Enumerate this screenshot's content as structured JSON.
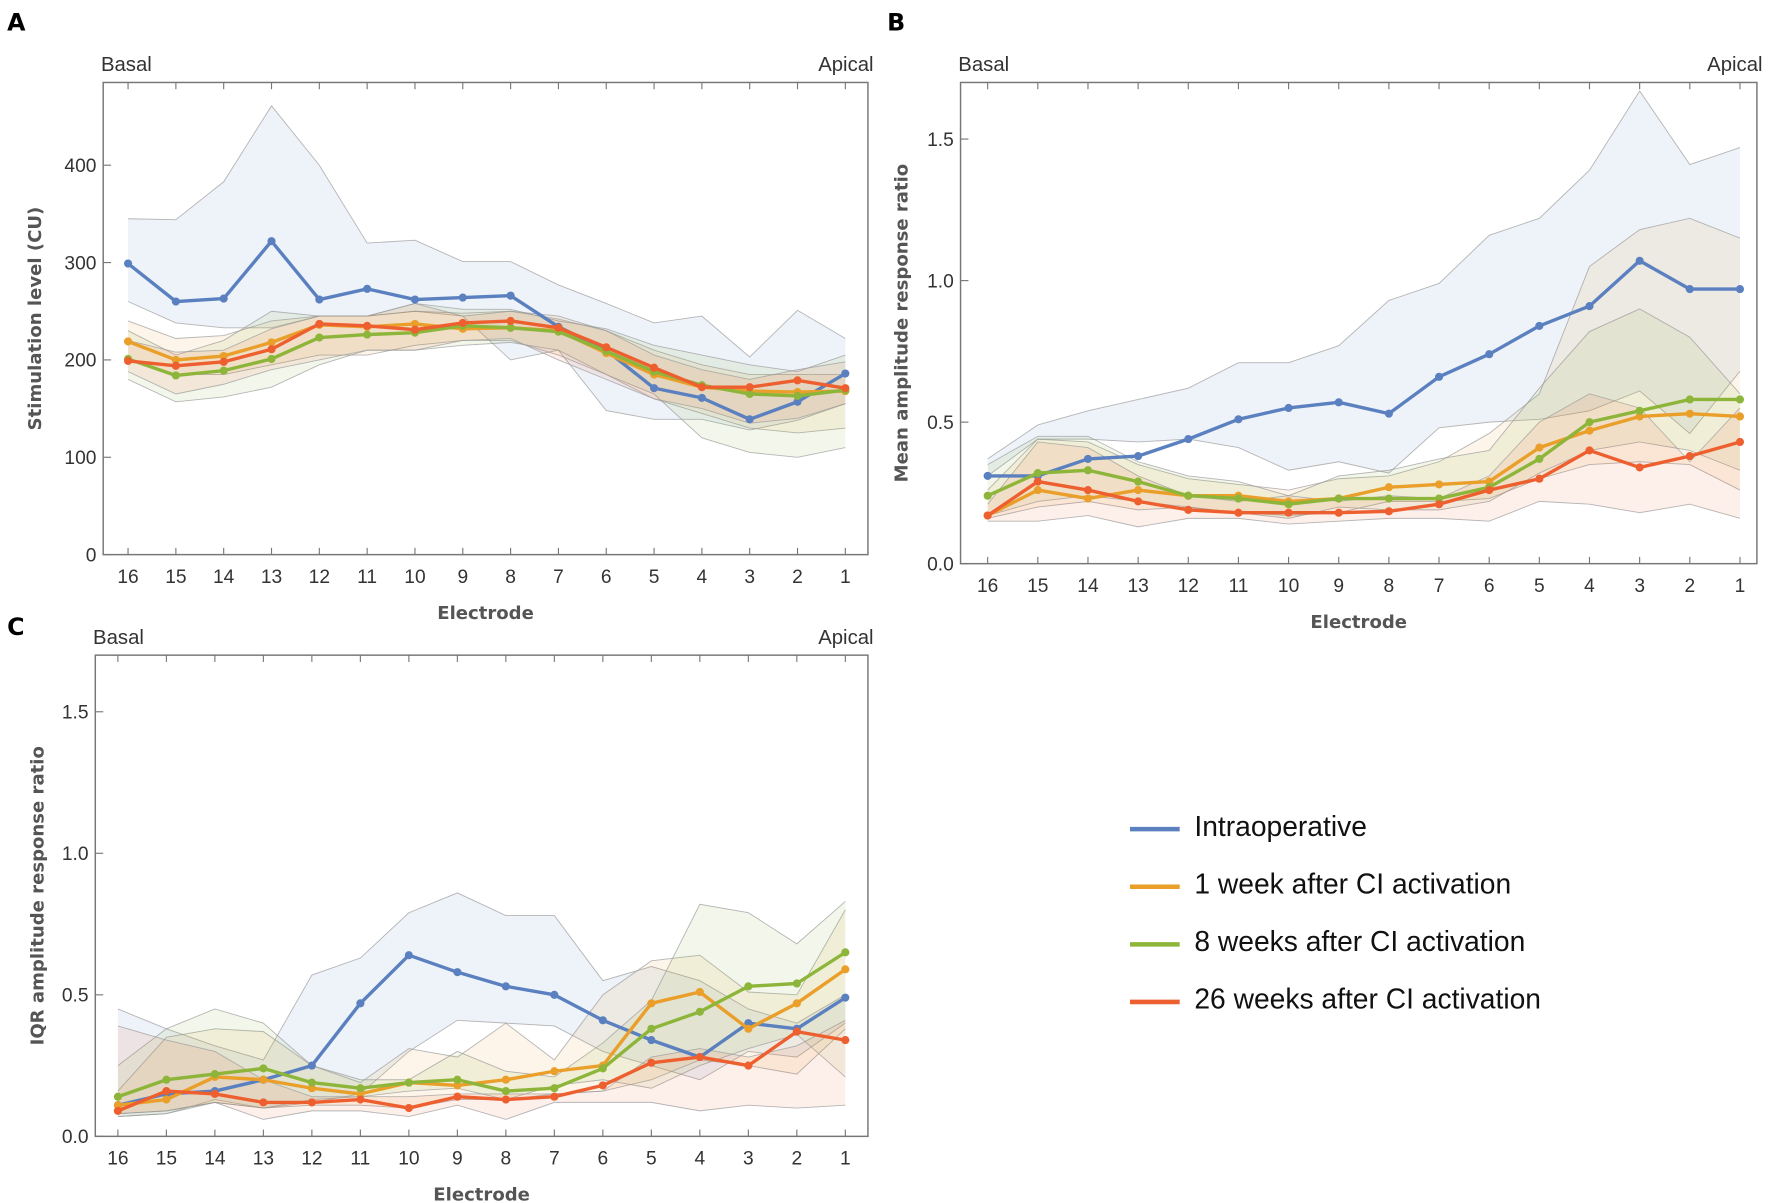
{
  "chart_data": [
    {
      "type": "line",
      "panel_label": "A",
      "basal_label": "Basal",
      "apical_label": "Apical",
      "xlabel": "Electrode",
      "ylabel": "Stimulation level (CU)",
      "categories": [
        "16",
        "15",
        "14",
        "13",
        "12",
        "11",
        "10",
        "9",
        "8",
        "7",
        "6",
        "5",
        "4",
        "3",
        "2",
        "1"
      ],
      "ylim": [
        0,
        485
      ],
      "yticks": [
        0,
        100,
        200,
        300,
        400
      ],
      "ytick_labels": [
        "0",
        "100",
        "200",
        "300",
        "400"
      ],
      "grid": false,
      "series": [
        {
          "name": "Intraoperative",
          "color": "#5a80c0",
          "values": [
            299,
            260,
            263,
            322,
            262,
            273,
            262,
            264,
            266,
            234,
            210,
            171,
            161,
            139,
            157,
            186
          ],
          "lower": [
            260,
            238,
            233,
            233,
            245,
            245,
            250,
            245,
            200,
            210,
            148,
            139,
            139,
            128,
            138,
            155
          ],
          "upper": [
            345,
            344,
            383,
            461,
            400,
            320,
            323,
            301,
            301,
            277,
            258,
            238,
            245,
            203,
            251,
            222
          ]
        },
        {
          "name": "1 week after CI activation",
          "color": "#e99f2a",
          "values": [
            219,
            200,
            204,
            218,
            236,
            234,
            237,
            232,
            233,
            230,
            207,
            185,
            172,
            168,
            167,
            168
          ],
          "lower": [
            200,
            185,
            185,
            195,
            205,
            205,
            215,
            220,
            220,
            205,
            185,
            160,
            145,
            130,
            125,
            130
          ],
          "upper": [
            240,
            222,
            225,
            240,
            245,
            245,
            250,
            248,
            250,
            245,
            230,
            210,
            195,
            185,
            185,
            185
          ]
        },
        {
          "name": "8 weeks after CI activation",
          "color": "#8db53a",
          "values": [
            201,
            184,
            189,
            201,
            223,
            226,
            228,
            235,
            233,
            229,
            209,
            188,
            174,
            165,
            163,
            169
          ],
          "lower": [
            180,
            157,
            162,
            172,
            195,
            210,
            210,
            215,
            218,
            210,
            185,
            165,
            120,
            105,
            100,
            110
          ],
          "upper": [
            230,
            205,
            220,
            250,
            245,
            245,
            258,
            252,
            252,
            240,
            232,
            215,
            205,
            195,
            188,
            205
          ]
        },
        {
          "name": "26 weeks after CI activation",
          "color": "#ee5f2f",
          "values": [
            199,
            194,
            198,
            211,
            237,
            235,
            231,
            238,
            240,
            233,
            213,
            192,
            172,
            172,
            179,
            171
          ],
          "lower": [
            188,
            165,
            175,
            190,
            200,
            210,
            210,
            220,
            222,
            200,
            180,
            160,
            150,
            135,
            140,
            155
          ],
          "upper": [
            220,
            208,
            210,
            232,
            245,
            245,
            258,
            245,
            250,
            242,
            230,
            205,
            190,
            180,
            190,
            198
          ]
        }
      ]
    },
    {
      "type": "line",
      "panel_label": "B",
      "basal_label": "Basal",
      "apical_label": "Apical",
      "xlabel": "Electrode",
      "ylabel": "Mean amplitude response ratio",
      "categories": [
        "16",
        "15",
        "14",
        "13",
        "12",
        "11",
        "10",
        "9",
        "8",
        "7",
        "6",
        "5",
        "4",
        "3",
        "2",
        "1"
      ],
      "ylim": [
        0,
        1.7
      ],
      "yticks": [
        0,
        0.5,
        1.0,
        1.5
      ],
      "ytick_labels": [
        "0.0",
        "0.5",
        "1.0",
        "1.5"
      ],
      "grid": false,
      "series": [
        {
          "name": "Intraoperative",
          "color": "#5a80c0",
          "values": [
            0.31,
            0.31,
            0.37,
            0.38,
            0.44,
            0.51,
            0.55,
            0.57,
            0.53,
            0.66,
            0.74,
            0.84,
            0.91,
            1.07,
            0.97,
            0.97
          ],
          "lower": [
            0.31,
            0.44,
            0.44,
            0.43,
            0.44,
            0.41,
            0.33,
            0.36,
            0.32,
            0.48,
            0.5,
            0.51,
            0.54,
            0.61,
            0.46,
            0.68
          ],
          "upper": [
            0.37,
            0.49,
            0.54,
            0.58,
            0.62,
            0.71,
            0.71,
            0.77,
            0.93,
            0.99,
            1.16,
            1.22,
            1.39,
            1.67,
            1.41,
            1.47
          ]
        },
        {
          "name": "1 week after CI activation",
          "color": "#e99f2a",
          "values": [
            0.17,
            0.26,
            0.23,
            0.26,
            0.24,
            0.24,
            0.22,
            0.23,
            0.27,
            0.28,
            0.29,
            0.41,
            0.47,
            0.52,
            0.53,
            0.52
          ],
          "lower": [
            0.16,
            0.2,
            0.22,
            0.19,
            0.2,
            0.18,
            0.17,
            0.18,
            0.22,
            0.22,
            0.23,
            0.3,
            0.35,
            0.36,
            0.35,
            0.26
          ],
          "upper": [
            0.26,
            0.44,
            0.43,
            0.35,
            0.3,
            0.28,
            0.26,
            0.3,
            0.31,
            0.36,
            0.46,
            0.6,
            1.05,
            1.18,
            1.22,
            1.15
          ]
        },
        {
          "name": "8 weeks after CI activation",
          "color": "#8db53a",
          "values": [
            0.24,
            0.32,
            0.33,
            0.29,
            0.24,
            0.23,
            0.21,
            0.23,
            0.23,
            0.23,
            0.27,
            0.37,
            0.5,
            0.54,
            0.58,
            0.58
          ],
          "lower": [
            0.17,
            0.22,
            0.24,
            0.22,
            0.2,
            0.18,
            0.16,
            0.2,
            0.19,
            0.19,
            0.22,
            0.32,
            0.4,
            0.43,
            0.4,
            0.33
          ],
          "upper": [
            0.35,
            0.45,
            0.45,
            0.36,
            0.31,
            0.29,
            0.24,
            0.31,
            0.33,
            0.37,
            0.4,
            0.62,
            0.82,
            0.9,
            0.8,
            0.6
          ]
        },
        {
          "name": "26 weeks after CI activation",
          "color": "#ee5f2f",
          "values": [
            0.17,
            0.29,
            0.26,
            0.22,
            0.19,
            0.18,
            0.18,
            0.18,
            0.185,
            0.21,
            0.26,
            0.3,
            0.4,
            0.34,
            0.38,
            0.43
          ],
          "lower": [
            0.15,
            0.15,
            0.17,
            0.13,
            0.16,
            0.16,
            0.14,
            0.15,
            0.16,
            0.16,
            0.15,
            0.22,
            0.21,
            0.18,
            0.21,
            0.16
          ],
          "upper": [
            0.21,
            0.43,
            0.41,
            0.31,
            0.24,
            0.22,
            0.24,
            0.22,
            0.24,
            0.23,
            0.31,
            0.5,
            0.6,
            0.55,
            0.36,
            0.55
          ]
        }
      ]
    },
    {
      "type": "line",
      "panel_label": "C",
      "basal_label": "Basal",
      "apical_label": "Apical",
      "xlabel": "Electrode",
      "ylabel": "IQR amplitude response ratio",
      "categories": [
        "16",
        "15",
        "14",
        "13",
        "12",
        "11",
        "10",
        "9",
        "8",
        "7",
        "6",
        "5",
        "4",
        "3",
        "2",
        "1"
      ],
      "ylim": [
        0,
        1.7
      ],
      "yticks": [
        0,
        0.5,
        1.0,
        1.5
      ],
      "ytick_labels": [
        "0.0",
        "0.5",
        "1.0",
        "1.5"
      ],
      "grid": false,
      "series": [
        {
          "name": "Intraoperative",
          "color": "#5a80c0",
          "values": [
            0.11,
            0.15,
            0.16,
            0.2,
            0.25,
            0.47,
            0.64,
            0.58,
            0.53,
            0.5,
            0.41,
            0.34,
            0.28,
            0.4,
            0.38,
            0.49
          ],
          "lower": [
            0.07,
            0.08,
            0.13,
            0.1,
            0.12,
            0.15,
            0.3,
            0.41,
            0.4,
            0.39,
            0.3,
            0.25,
            0.2,
            0.3,
            0.28,
            0.4
          ],
          "upper": [
            0.45,
            0.38,
            0.32,
            0.27,
            0.57,
            0.63,
            0.79,
            0.86,
            0.78,
            0.78,
            0.55,
            0.6,
            0.55,
            0.45,
            0.4,
            0.5
          ]
        },
        {
          "name": "1 week after CI activation",
          "color": "#e99f2a",
          "values": [
            0.11,
            0.13,
            0.21,
            0.2,
            0.17,
            0.15,
            0.19,
            0.18,
            0.2,
            0.23,
            0.25,
            0.47,
            0.51,
            0.38,
            0.47,
            0.59
          ],
          "lower": [
            0.08,
            0.09,
            0.12,
            0.1,
            0.11,
            0.11,
            0.1,
            0.13,
            0.13,
            0.15,
            0.16,
            0.2,
            0.27,
            0.25,
            0.22,
            0.38
          ],
          "upper": [
            0.16,
            0.35,
            0.38,
            0.37,
            0.25,
            0.19,
            0.31,
            0.28,
            0.4,
            0.27,
            0.5,
            0.62,
            0.64,
            0.51,
            0.5,
            0.8
          ]
        },
        {
          "name": "8 weeks after CI activation",
          "color": "#8db53a",
          "values": [
            0.14,
            0.2,
            0.22,
            0.24,
            0.19,
            0.17,
            0.19,
            0.2,
            0.16,
            0.17,
            0.24,
            0.38,
            0.44,
            0.53,
            0.54,
            0.65
          ],
          "lower": [
            0.07,
            0.08,
            0.12,
            0.1,
            0.13,
            0.14,
            0.16,
            0.17,
            0.13,
            0.18,
            0.2,
            0.17,
            0.25,
            0.31,
            0.36,
            0.21
          ],
          "upper": [
            0.25,
            0.38,
            0.45,
            0.4,
            0.25,
            0.2,
            0.2,
            0.3,
            0.23,
            0.21,
            0.33,
            0.48,
            0.82,
            0.79,
            0.68,
            0.83
          ]
        },
        {
          "name": "26 weeks after CI activation",
          "color": "#ee5f2f",
          "values": [
            0.09,
            0.16,
            0.15,
            0.12,
            0.12,
            0.13,
            0.1,
            0.14,
            0.13,
            0.14,
            0.18,
            0.26,
            0.28,
            0.25,
            0.37,
            0.34
          ],
          "lower": [
            0.08,
            0.09,
            0.12,
            0.06,
            0.09,
            0.09,
            0.07,
            0.11,
            0.06,
            0.12,
            0.12,
            0.12,
            0.09,
            0.11,
            0.1,
            0.11
          ],
          "upper": [
            0.39,
            0.34,
            0.3,
            0.2,
            0.14,
            0.14,
            0.14,
            0.15,
            0.15,
            0.15,
            0.16,
            0.28,
            0.31,
            0.28,
            0.32,
            0.41
          ]
        }
      ]
    }
  ],
  "legend": {
    "placement": "bottom-right",
    "items": [
      {
        "label": "Intraoperative",
        "color": "#5a80c0"
      },
      {
        "label": "1 week after CI activation",
        "color": "#e99f2a"
      },
      {
        "label": "8 weeks after CI activation",
        "color": "#8db53a"
      },
      {
        "label": "26 weeks after CI activation",
        "color": "#ee5f2f"
      }
    ]
  }
}
